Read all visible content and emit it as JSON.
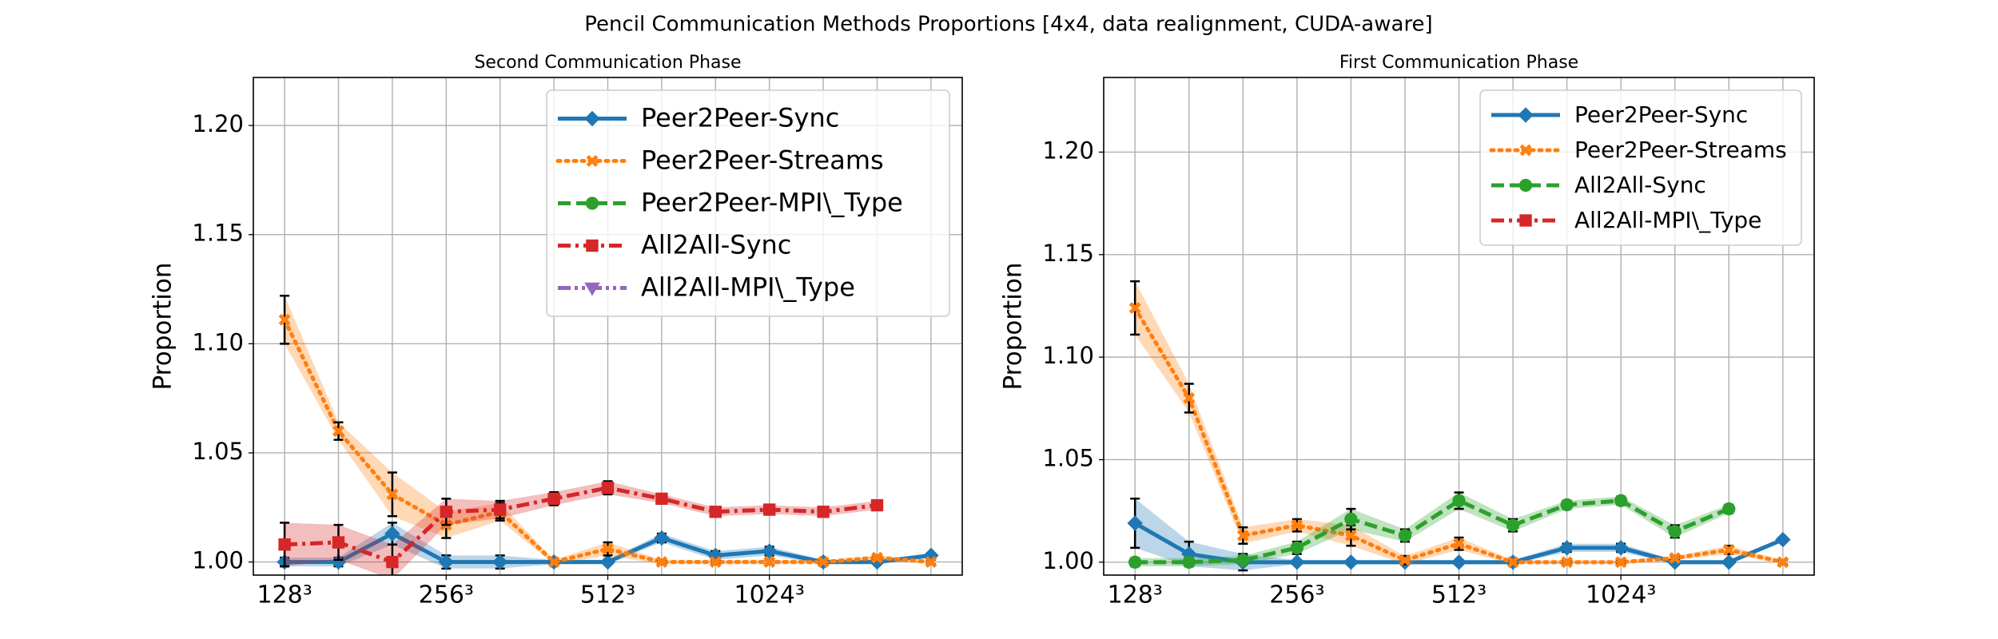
{
  "title": "Pencil Communication Methods Proportions [4x4, data realignment, CUDA-aware]",
  "chart_data": [
    {
      "type": "line",
      "title": "Second Communication Phase",
      "ylabel": "Proportion",
      "categories": [
        "128³",
        null,
        null,
        "256³",
        null,
        null,
        "512³",
        null,
        null,
        "1024³",
        null,
        null,
        null
      ],
      "ylim": [
        0.994,
        1.222
      ],
      "yticks": [
        {
          "value": 1.0,
          "label": "1.00"
        },
        1.05,
        {
          "value": 1.1,
          "label": "1.10"
        },
        1.15,
        {
          "value": 1.2,
          "label": "1.20"
        }
      ],
      "grid": true,
      "legend": "upper right",
      "series": [
        {
          "name": "Peer2Peer-Sync",
          "color": "#1f77b4",
          "marker": "diamond",
          "linestyle": "solid",
          "values": [
            1.0,
            1.0,
            1.013,
            1.0,
            1.0,
            1.0,
            1.0,
            1.011,
            1.003,
            1.005,
            1.0,
            1.0,
            1.003
          ],
          "errors": [
            0.002,
            0.002,
            0.005,
            0.003,
            0.003,
            0.001,
            0.001,
            0.002,
            0.002,
            0.002,
            0.001,
            0.001,
            0.001
          ]
        },
        {
          "name": "Peer2Peer-Streams",
          "color": "#ff7f0e",
          "marker": "x",
          "linestyle": "dotted",
          "values": [
            1.111,
            1.06,
            1.031,
            1.017,
            1.023,
            1.0,
            1.006,
            1.0,
            1.0,
            1.0,
            1.0,
            1.002,
            1.0
          ],
          "errors": [
            0.011,
            0.004,
            0.01,
            0.006,
            0.004,
            0.001,
            0.003,
            0.001,
            0.001,
            0.001,
            0.001,
            0.001,
            0.001
          ]
        },
        {
          "name": "Peer2Peer-MPI\\_Type",
          "color": "#2ca02c",
          "marker": "circle",
          "linestyle": "dashed",
          "values": [
            null,
            null,
            null,
            null,
            null,
            null,
            null,
            null,
            null,
            null,
            null,
            null,
            null
          ],
          "errors": [
            null,
            null,
            null,
            null,
            null,
            null,
            null,
            null,
            null,
            null,
            null,
            null,
            null
          ]
        },
        {
          "name": "All2All-Sync",
          "color": "#d62728",
          "marker": "square",
          "linestyle": "dashdot",
          "values": [
            1.008,
            1.009,
            1.0,
            1.023,
            1.024,
            1.029,
            1.034,
            1.029,
            1.023,
            1.024,
            1.023,
            1.026,
            null
          ],
          "errors": [
            0.01,
            0.008,
            0.008,
            0.006,
            0.004,
            0.003,
            0.003,
            0.002,
            0.002,
            0.002,
            0.002,
            0.002,
            null
          ]
        },
        {
          "name": "All2All-MPI\\_Type",
          "color": "#9467bd",
          "marker": "triangle",
          "linestyle": "dashdotdot",
          "values": [
            null,
            null,
            null,
            null,
            null,
            null,
            null,
            null,
            null,
            null,
            null,
            null,
            null
          ],
          "errors": [
            null,
            null,
            null,
            null,
            null,
            null,
            null,
            null,
            null,
            null,
            null,
            null,
            null
          ]
        }
      ]
    },
    {
      "type": "line",
      "title": "First Communication Phase",
      "ylabel": "Proportion",
      "categories": [
        "128³",
        null,
        null,
        "256³",
        null,
        null,
        "512³",
        null,
        null,
        "1024³",
        null,
        null,
        null
      ],
      "ylim": [
        0.9937,
        1.2364
      ],
      "yticks": [
        {
          "value": 1.0,
          "label": "1.00"
        },
        1.05,
        {
          "value": 1.1,
          "label": "1.10"
        },
        1.15,
        {
          "value": 1.2,
          "label": "1.20"
        }
      ],
      "grid": true,
      "legend": "upper right",
      "series": [
        {
          "name": "Peer2Peer-Sync",
          "color": "#1f77b4",
          "marker": "diamond",
          "linestyle": "solid",
          "values": [
            1.019,
            1.004,
            1.0,
            1.0,
            1.0,
            1.0,
            1.0,
            1.0,
            1.007,
            1.007,
            1.0,
            1.0,
            1.011
          ],
          "errors": [
            0.012,
            0.006,
            0.004,
            0.001,
            0.001,
            0.001,
            0.001,
            0.001,
            0.002,
            0.002,
            0.001,
            0.001,
            0.001
          ]
        },
        {
          "name": "Peer2Peer-Streams",
          "color": "#ff7f0e",
          "marker": "x",
          "linestyle": "dotted",
          "values": [
            1.124,
            1.08,
            1.013,
            1.018,
            1.013,
            1.001,
            1.009,
            1.0,
            1.0,
            1.0,
            1.002,
            1.006,
            1.0
          ],
          "errors": [
            0.013,
            0.007,
            0.004,
            0.003,
            0.005,
            0.002,
            0.003,
            0.001,
            0.001,
            0.001,
            0.001,
            0.002,
            0.001
          ]
        },
        {
          "name": "All2All-Sync",
          "color": "#2ca02c",
          "marker": "circle",
          "linestyle": "dashed",
          "values": [
            1.0,
            1.0,
            1.001,
            1.007,
            1.021,
            1.013,
            1.03,
            1.018,
            1.028,
            1.03,
            1.015,
            1.026,
            null
          ],
          "errors": [
            0.002,
            0.002,
            0.002,
            0.003,
            0.005,
            0.003,
            0.004,
            0.003,
            0.002,
            0.002,
            0.003,
            0.002,
            null
          ]
        },
        {
          "name": "All2All-MPI\\_Type",
          "color": "#d62728",
          "marker": "square",
          "linestyle": "dashdot",
          "values": [
            null,
            null,
            null,
            null,
            null,
            null,
            null,
            null,
            null,
            null,
            null,
            null,
            null
          ],
          "errors": [
            null,
            null,
            null,
            null,
            null,
            null,
            null,
            null,
            null,
            null,
            null,
            null,
            null
          ]
        }
      ]
    }
  ]
}
